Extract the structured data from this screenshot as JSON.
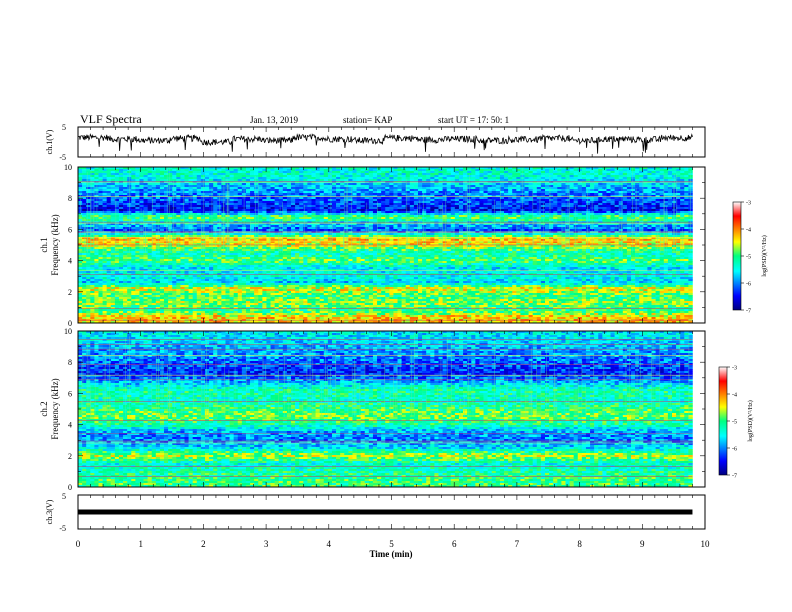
{
  "header": {
    "title": "VLF Spectra",
    "date": "Jan. 13, 2019",
    "station": "station= KAP",
    "start": "start  UT =  17: 50: 1"
  },
  "chart_data": [
    {
      "type": "line",
      "panel": "ch1-waveform",
      "ylabel": "ch.1(V)",
      "ylim": [
        -5,
        5
      ],
      "yticks": [
        "5",
        "-5"
      ],
      "xlim": [
        0,
        10
      ],
      "data_extent_min": [
        0,
        9.8
      ],
      "approx_level_V": [
        1.5,
        1.0,
        0.5,
        1.2,
        0.0,
        1.0,
        0.5,
        1.5,
        1.0,
        0.5,
        1.3,
        0.8,
        1.0,
        0.5,
        0.8,
        1.2,
        0.5,
        1.0,
        0.8,
        1.4
      ],
      "color": "#000000"
    },
    {
      "type": "heatmap",
      "panel": "ch1-spectrogram",
      "ylabel_line1": "ch.1",
      "ylabel_line2": "Frequency (kHz)",
      "ylim_kHz": [
        0,
        10
      ],
      "yticks": [
        "0",
        "2",
        "4",
        "6",
        "8",
        "10"
      ],
      "xlim_min": [
        0,
        10
      ],
      "data_extent_min": [
        0,
        9.8
      ],
      "colorbar": {
        "label": "log(PSD)(V²/Hz)",
        "range": [
          -7,
          -3
        ],
        "ticks": [
          "-3",
          "-4",
          "-5",
          "-6",
          "-7"
        ]
      },
      "bands_kHz": [
        {
          "f": 9.5,
          "level": -5.4
        },
        {
          "f": 8.5,
          "level": -5.9
        },
        {
          "f": 7.8,
          "level": -6.2
        },
        {
          "f": 7.2,
          "level": -6.5
        },
        {
          "f": 6.8,
          "level": -4.8
        },
        {
          "f": 6.3,
          "level": -5.8
        },
        {
          "f": 5.9,
          "level": -6.2
        },
        {
          "f": 5.4,
          "level": -4.2
        },
        {
          "f": 5.0,
          "level": -4.5
        },
        {
          "f": 4.5,
          "level": -5.3
        },
        {
          "f": 4.0,
          "level": -4.9
        },
        {
          "f": 3.5,
          "level": -5.6
        },
        {
          "f": 3.0,
          "level": -5.4
        },
        {
          "f": 2.6,
          "level": -5.7
        },
        {
          "f": 2.2,
          "level": -4.4
        },
        {
          "f": 1.7,
          "level": -5.0
        },
        {
          "f": 1.3,
          "level": -4.7
        },
        {
          "f": 0.8,
          "level": -5.1
        },
        {
          "f": 0.4,
          "level": -4.3
        }
      ]
    },
    {
      "type": "heatmap",
      "panel": "ch2-spectrogram",
      "ylabel_line1": "ch.2",
      "ylabel_line2": "Frequency (kHz)",
      "ylim_kHz": [
        0,
        10
      ],
      "yticks": [
        "0",
        "2",
        "4",
        "6",
        "8",
        "10"
      ],
      "xlim_min": [
        0,
        10
      ],
      "data_extent_min": [
        0,
        9.8
      ],
      "colorbar": {
        "label": "log(PSD)(V²/Hz)",
        "range": [
          -7,
          -3
        ],
        "ticks": [
          "-3",
          "-4",
          "-5",
          "-6",
          "-7"
        ]
      },
      "bands_kHz": [
        {
          "f": 9.5,
          "level": -5.6
        },
        {
          "f": 8.7,
          "level": -5.9
        },
        {
          "f": 8.0,
          "level": -6.1
        },
        {
          "f": 7.3,
          "level": -6.4
        },
        {
          "f": 6.8,
          "level": -5.9
        },
        {
          "f": 6.2,
          "level": -5.2
        },
        {
          "f": 5.5,
          "level": -5.3
        },
        {
          "f": 5.0,
          "level": -5.0
        },
        {
          "f": 4.5,
          "level": -4.8
        },
        {
          "f": 4.0,
          "level": -5.2
        },
        {
          "f": 3.5,
          "level": -5.9
        },
        {
          "f": 3.0,
          "level": -6.0
        },
        {
          "f": 2.5,
          "level": -5.6
        },
        {
          "f": 2.0,
          "level": -4.6
        },
        {
          "f": 1.5,
          "level": -5.4
        },
        {
          "f": 1.0,
          "level": -5.2
        },
        {
          "f": 0.5,
          "level": -5.0
        }
      ]
    },
    {
      "type": "line",
      "panel": "ch3-waveform",
      "ylabel": "ch.3(V)",
      "ylim": [
        -5,
        5
      ],
      "yticks": [
        "5",
        "-5"
      ],
      "xlim": [
        0,
        10
      ],
      "data_extent_min": [
        0,
        9.8
      ],
      "constant_value_V": 0,
      "color": "#000000"
    }
  ],
  "xaxis": {
    "label": "Time (min)",
    "ticks": [
      "0",
      "1",
      "2",
      "3",
      "4",
      "5",
      "6",
      "7",
      "8",
      "9",
      "10"
    ]
  }
}
